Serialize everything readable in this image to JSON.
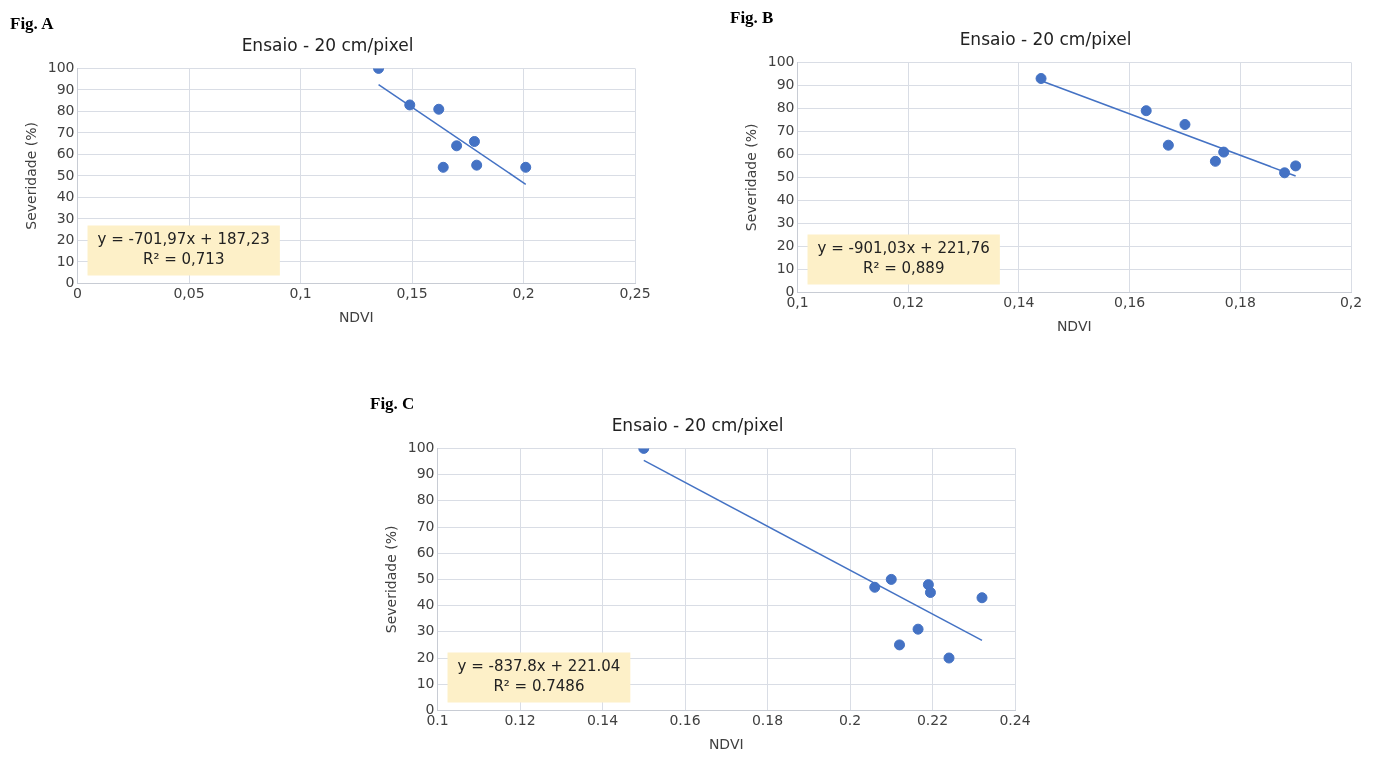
{
  "chart_data": [
    {
      "type": "scatter",
      "title": "Ensaio - 20 cm/pixel",
      "xlabel": "NDVI",
      "ylabel": "Severidade (%)",
      "annotations": [
        "Fig. A",
        "y = -701,97x + 187,23",
        "R² = 0,713"
      ],
      "grid": true,
      "legend": false,
      "marker": "circle",
      "xlim": [
        0,
        0.25
      ],
      "xticks": [
        0,
        {
          "value": 0.05,
          "label": "0,05"
        },
        {
          "value": 0.1,
          "label": "0,1"
        },
        {
          "value": 0.15,
          "label": "0,15"
        },
        {
          "value": 0.2,
          "label": "0,2"
        },
        {
          "value": 0.25,
          "label": "0,25"
        }
      ],
      "ylim": [
        0,
        100
      ],
      "yticks": [
        0,
        10,
        20,
        30,
        40,
        50,
        60,
        70,
        80,
        90,
        100
      ],
      "series": [
        {
          "color": "#4472c4",
          "x": [
            0.135,
            0.149,
            0.162,
            0.164,
            0.17,
            0.178,
            0.179,
            0.201
          ],
          "values": [
            100,
            83,
            81,
            54,
            64,
            66,
            55,
            54
          ]
        },
        {
          "type": "line",
          "color": "#4472c4",
          "marker": "none",
          "x": [
            0.135,
            0.201
          ],
          "values": [
            92.5,
            46.1
          ]
        }
      ]
    },
    {
      "type": "scatter",
      "title": "Ensaio - 20 cm/pixel",
      "xlabel": "NDVI",
      "ylabel": "Severidade (%)",
      "annotations": [
        "Fig. B",
        "y = -901,03x + 221,76",
        "R² = 0,889"
      ],
      "grid": true,
      "legend": false,
      "marker": "circle",
      "xlim": [
        0.1,
        0.2
      ],
      "xticks": [
        {
          "value": 0.1,
          "label": "0,1"
        },
        {
          "value": 0.12,
          "label": "0,12"
        },
        {
          "value": 0.14,
          "label": "0,14"
        },
        {
          "value": 0.16,
          "label": "0,16"
        },
        {
          "value": 0.18,
          "label": "0,18"
        },
        {
          "value": 0.2,
          "label": "0,2"
        }
      ],
      "ylim": [
        0,
        100
      ],
      "yticks": [
        0,
        10,
        20,
        30,
        40,
        50,
        60,
        70,
        80,
        90,
        100
      ],
      "series": [
        {
          "color": "#4472c4",
          "x": [
            0.144,
            0.163,
            0.167,
            0.17,
            0.1755,
            0.177,
            0.188,
            0.19
          ],
          "values": [
            93,
            79,
            64,
            73,
            57,
            61,
            52,
            55
          ]
        },
        {
          "type": "line",
          "color": "#4472c4",
          "marker": "none",
          "x": [
            0.144,
            0.19
          ],
          "values": [
            92.0,
            50.6
          ]
        }
      ]
    },
    {
      "type": "scatter",
      "title": "Ensaio - 20 cm/pixel",
      "xlabel": "NDVI",
      "ylabel": "Severidade (%)",
      "annotations": [
        "Fig. C",
        "y = -837.8x + 221.04",
        "R² = 0.7486"
      ],
      "grid": true,
      "legend": false,
      "marker": "circle",
      "xlim": [
        0.1,
        0.24
      ],
      "xticks": [
        0.1,
        0.12,
        0.14,
        0.16,
        0.18,
        0.2,
        0.22,
        0.24
      ],
      "ylim": [
        0,
        100
      ],
      "yticks": [
        0,
        10,
        20,
        30,
        40,
        50,
        60,
        70,
        80,
        90,
        100
      ],
      "series": [
        {
          "color": "#4472c4",
          "x": [
            0.15,
            0.206,
            0.21,
            0.212,
            0.2165,
            0.219,
            0.2195,
            0.224,
            0.232
          ],
          "values": [
            100,
            47,
            50,
            25,
            31,
            48,
            45,
            20,
            43
          ]
        },
        {
          "type": "line",
          "color": "#4472c4",
          "marker": "none",
          "x": [
            0.15,
            0.232
          ],
          "values": [
            95.4,
            26.7
          ]
        }
      ]
    }
  ]
}
